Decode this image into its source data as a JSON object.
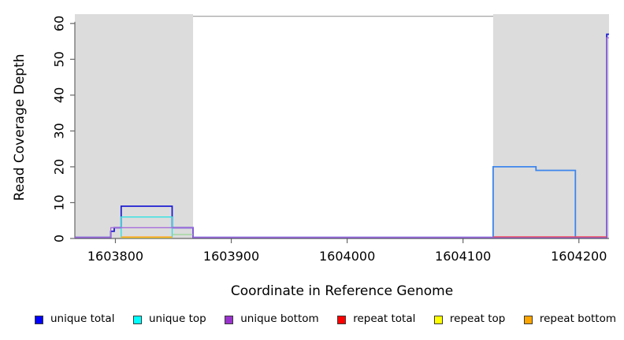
{
  "chart_data": {
    "type": "step-line",
    "title": "",
    "xlabel": "Coordinate in Reference Genome",
    "ylabel": "Read Coverage Depth",
    "xlim": [
      1603765,
      1604226
    ],
    "ylim": [
      0,
      62
    ],
    "x_ticks": [
      1603800,
      1603900,
      1604000,
      1604100,
      1604200
    ],
    "y_ticks": [
      0,
      10,
      20,
      30,
      40,
      50,
      60
    ],
    "grid": "off",
    "legend_position": "bottom",
    "shade_color": "#dcdcdc",
    "shaded_regions": [
      {
        "name": "left-repeat-region",
        "x0": 1603765,
        "x1": 1603867
      },
      {
        "name": "right-repeat-region",
        "x0": 1604126,
        "x1": 1604226
      }
    ],
    "series": [
      {
        "name": "unique total",
        "color": "#1e1ed2",
        "width": 1.8,
        "points": [
          [
            1603765,
            0
          ],
          [
            1603796,
            0
          ],
          [
            1603796,
            2
          ],
          [
            1603799,
            2
          ],
          [
            1603799,
            3
          ],
          [
            1603805,
            3
          ],
          [
            1603805,
            9
          ],
          [
            1603849,
            9
          ],
          [
            1603849,
            3
          ],
          [
            1603867,
            3
          ],
          [
            1603867,
            0
          ],
          [
            1604224,
            0
          ],
          [
            1604224,
            57
          ],
          [
            1604226,
            57
          ]
        ]
      },
      {
        "name": "unique total",
        "color": "#3e86ec",
        "width": 1.8,
        "points": [
          [
            1604126,
            0
          ],
          [
            1604126,
            20
          ],
          [
            1604163,
            20
          ],
          [
            1604163,
            19
          ],
          [
            1604197,
            19
          ],
          [
            1604197,
            0
          ]
        ]
      },
      {
        "name": "unique top",
        "color": "#2fe2e2",
        "width": 1.4,
        "points": [
          [
            1603805,
            0
          ],
          [
            1603805,
            6
          ],
          [
            1603849,
            6
          ],
          [
            1603849,
            0
          ]
        ]
      },
      {
        "name": "unique top",
        "color": "#a5d6a0",
        "width": 1.4,
        "points": [
          [
            1603849,
            0.8
          ],
          [
            1603867,
            0.8
          ]
        ]
      },
      {
        "name": "unique bottom",
        "color": "#a66bda",
        "width": 1.3,
        "points": [
          [
            1603765,
            0
          ],
          [
            1603796,
            0
          ],
          [
            1603796,
            3
          ],
          [
            1603867,
            3
          ],
          [
            1603867,
            0
          ],
          [
            1604224,
            0
          ],
          [
            1604224,
            56
          ],
          [
            1604226,
            56
          ]
        ]
      },
      {
        "name": "repeat total",
        "color": "#ee4455",
        "width": 1.2,
        "points": [
          [
            1604126,
            0.15
          ],
          [
            1604224,
            0.15
          ]
        ]
      },
      {
        "name": "repeat top",
        "color": "#ffff00",
        "width": 1.2,
        "points": [
          [
            1603805,
            0
          ],
          [
            1603849,
            0
          ]
        ]
      },
      {
        "name": "repeat bottom",
        "color": "#ffa020",
        "width": 1.4,
        "points": [
          [
            1603805,
            0.1
          ],
          [
            1603849,
            0.1
          ]
        ]
      }
    ]
  },
  "legend": {
    "items": [
      {
        "label": "unique total",
        "color": "#0000ff"
      },
      {
        "label": "unique top",
        "color": "#00ffff"
      },
      {
        "label": "unique bottom",
        "color": "#9932cc"
      },
      {
        "label": "repeat total",
        "color": "#ff0000"
      },
      {
        "label": "repeat top",
        "color": "#ffff00"
      },
      {
        "label": "repeat bottom",
        "color": "#ffa500"
      }
    ]
  }
}
